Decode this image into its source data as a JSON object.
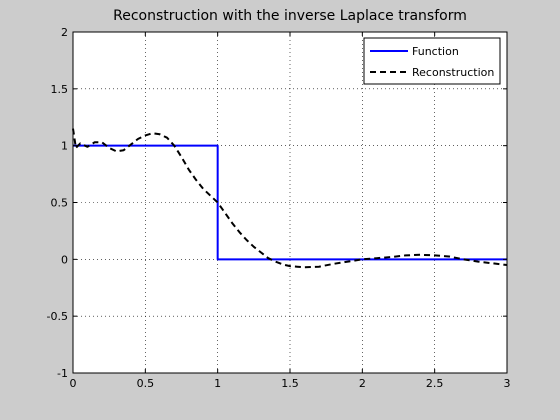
{
  "chart_data": {
    "type": "line",
    "title": "Reconstruction with the inverse Laplace transform",
    "xlabel": "",
    "ylabel": "",
    "xlim": [
      0,
      3
    ],
    "ylim": [
      -1,
      2
    ],
    "xticks": [
      0,
      0.5,
      1,
      1.5,
      2,
      2.5,
      3
    ],
    "xtick_labels": [
      "0",
      "0.5",
      "1",
      "1.5",
      "2",
      "2.5",
      "3"
    ],
    "yticks": [
      -1,
      -0.5,
      0,
      0.5,
      1,
      1.5,
      2
    ],
    "ytick_labels": [
      "-1",
      "-0.5",
      "0",
      "0.5",
      "1",
      "1.5",
      "2"
    ],
    "grid": true,
    "legend_position": "top-right",
    "series": [
      {
        "name": "Function",
        "color": "#0000ff",
        "style": "solid",
        "x": [
          0,
          1,
          1,
          3
        ],
        "y": [
          1,
          1,
          0,
          0
        ]
      },
      {
        "name": "Reconstruction",
        "color": "#000000",
        "style": "dashed",
        "x": [
          0,
          0.02,
          0.05,
          0.1,
          0.15,
          0.2,
          0.25,
          0.3,
          0.35,
          0.4,
          0.45,
          0.5,
          0.55,
          0.6,
          0.65,
          0.7,
          0.75,
          0.8,
          0.85,
          0.9,
          0.95,
          1.0,
          1.05,
          1.1,
          1.15,
          1.2,
          1.25,
          1.3,
          1.35,
          1.4,
          1.45,
          1.5,
          1.55,
          1.6,
          1.7,
          1.8,
          1.9,
          2.0,
          2.1,
          2.2,
          2.3,
          2.4,
          2.5,
          2.6,
          2.7,
          2.8,
          2.9,
          3.0
        ],
        "y": [
          1.15,
          0.98,
          1.02,
          0.99,
          1.03,
          1.03,
          0.98,
          0.95,
          0.96,
          1.01,
          1.06,
          1.09,
          1.11,
          1.1,
          1.07,
          1.0,
          0.9,
          0.79,
          0.7,
          0.62,
          0.56,
          0.5,
          0.41,
          0.32,
          0.24,
          0.17,
          0.11,
          0.06,
          0.01,
          -0.02,
          -0.045,
          -0.06,
          -0.065,
          -0.07,
          -0.065,
          -0.04,
          -0.02,
          0.0,
          0.01,
          0.02,
          0.035,
          0.04,
          0.035,
          0.025,
          0.0,
          -0.02,
          -0.035,
          -0.05
        ]
      }
    ]
  }
}
